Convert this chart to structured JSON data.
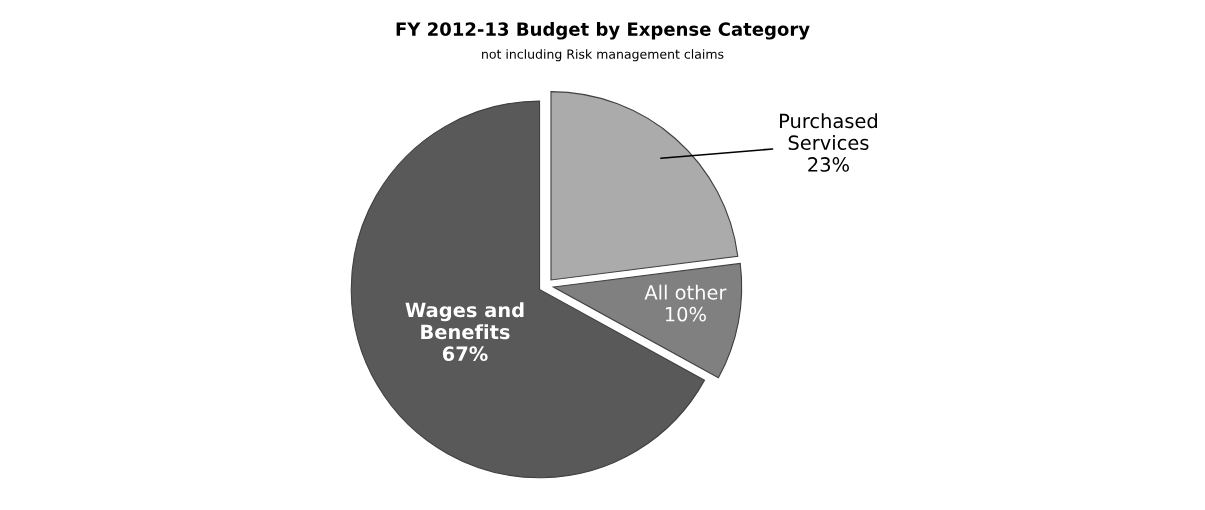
{
  "chart_data": {
    "type": "pie",
    "title": "FY 2012-13 Budget by Expense Category",
    "subtitle": "not including Risk management claims",
    "categories": [
      "Purchased Services",
      "All other",
      "Wages and Benefits"
    ],
    "values": [
      23,
      10,
      67
    ],
    "colors": [
      "#ababab",
      "#808080",
      "#595959"
    ],
    "value_labels": [
      "23%",
      "10%",
      "67%"
    ]
  }
}
